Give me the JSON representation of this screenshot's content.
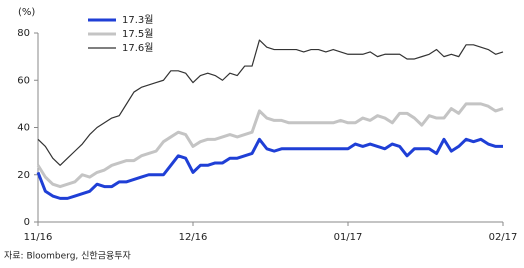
{
  "chart_data": {
    "type": "line",
    "y_unit": "(%)",
    "source": "자료: Bloomberg, 신한금융투자",
    "categories": [
      "11/16",
      null,
      null,
      null,
      null,
      null,
      null,
      null,
      null,
      null,
      null,
      null,
      null,
      null,
      null,
      null,
      null,
      null,
      null,
      null,
      null,
      "12/16",
      null,
      null,
      null,
      null,
      null,
      null,
      null,
      null,
      null,
      null,
      null,
      null,
      null,
      null,
      null,
      null,
      null,
      null,
      null,
      null,
      "01/17",
      null,
      null,
      null,
      null,
      null,
      null,
      null,
      null,
      null,
      null,
      null,
      null,
      null,
      null,
      null,
      null,
      null,
      null,
      null,
      null,
      "02/17"
    ],
    "series": [
      {
        "name": "17.3월",
        "color": "#1f3fd6",
        "width": 3,
        "values": [
          21,
          13,
          11,
          10,
          10,
          11,
          12,
          13,
          16,
          15,
          15,
          17,
          17,
          18,
          19,
          20,
          20,
          20,
          24,
          28,
          27,
          21,
          24,
          24,
          25,
          25,
          27,
          27,
          28,
          29,
          35,
          31,
          30,
          31,
          31,
          31,
          31,
          31,
          31,
          31,
          31,
          31,
          31,
          33,
          32,
          33,
          32,
          31,
          33,
          32,
          28,
          31,
          31,
          31,
          29,
          35,
          30,
          32,
          35,
          34,
          35,
          33,
          32,
          32
        ]
      },
      {
        "name": "17.5월",
        "color": "#c4c4c4",
        "width": 3,
        "values": [
          24,
          19,
          16,
          15,
          16,
          17,
          20,
          19,
          21,
          22,
          24,
          25,
          26,
          26,
          28,
          29,
          30,
          34,
          36,
          38,
          37,
          32,
          34,
          35,
          35,
          36,
          37,
          36,
          37,
          38,
          47,
          44,
          43,
          43,
          42,
          42,
          42,
          42,
          42,
          42,
          42,
          43,
          42,
          42,
          44,
          43,
          45,
          44,
          42,
          46,
          46,
          44,
          41,
          45,
          44,
          44,
          48,
          46,
          50,
          50,
          50,
          49,
          47,
          48
        ]
      },
      {
        "name": "17.6월",
        "color": "#333333",
        "width": 1.2,
        "values": [
          35,
          32,
          27,
          24,
          27,
          30,
          33,
          37,
          40,
          42,
          44,
          45,
          50,
          55,
          57,
          58,
          59,
          60,
          64,
          64,
          63,
          59,
          62,
          63,
          62,
          60,
          63,
          62,
          66,
          66,
          77,
          74,
          73,
          73,
          73,
          73,
          72,
          73,
          73,
          72,
          73,
          72,
          71,
          71,
          71,
          72,
          70,
          71,
          71,
          71,
          69,
          69,
          70,
          71,
          73,
          70,
          71,
          70,
          75,
          75,
          74,
          73,
          71,
          72
        ]
      }
    ],
    "ylim": [
      0,
      80
    ],
    "yticks": [
      0,
      20,
      40,
      60,
      80
    ],
    "legend": "upper-left"
  }
}
